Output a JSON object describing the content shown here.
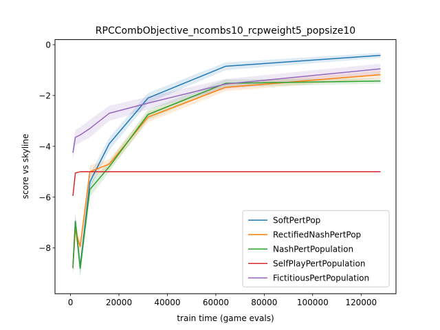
{
  "chart_data": {
    "type": "line",
    "title": "RPCCombObjective_ncombs10_rcpweight5_popsize10",
    "xlabel": "train time (game evals)",
    "ylabel": "score vs skyline",
    "xlim": [
      -6400,
      134400
    ],
    "ylim": [
      -9.8,
      0.2
    ],
    "x_ticks": [
      0,
      20000,
      40000,
      60000,
      80000,
      100000,
      120000
    ],
    "x_tick_labels": [
      "0",
      "20000",
      "40000",
      "60000",
      "80000",
      "100000",
      "120000"
    ],
    "y_ticks": [
      -8,
      -6,
      -4,
      -2,
      0
    ],
    "y_tick_labels": [
      "−8",
      "−6",
      "−4",
      "−2",
      "0"
    ],
    "grid": false,
    "legend_position": "lower-right",
    "x": [
      1000,
      2000,
      4000,
      8000,
      16000,
      32000,
      64000,
      128000
    ],
    "series": [
      {
        "name": "SoftPertPop",
        "color": "#1f77b4",
        "values": [
          -8.7,
          -6.95,
          -8.75,
          -5.4,
          -3.9,
          -2.1,
          -0.85,
          -0.42
        ],
        "band": [
          0.3,
          0.3,
          0.35,
          0.3,
          0.25,
          0.2,
          0.15,
          0.1
        ]
      },
      {
        "name": "RectifiedNashPertPop",
        "color": "#ff7f0e",
        "values": [
          -8.75,
          -7.3,
          -7.95,
          -5.0,
          -4.7,
          -2.85,
          -1.68,
          -1.18
        ],
        "band": [
          0.3,
          0.3,
          0.3,
          0.25,
          0.2,
          0.2,
          0.15,
          0.15
        ]
      },
      {
        "name": "NashPertPopulation",
        "color": "#2ca02c",
        "values": [
          -8.8,
          -6.95,
          -8.8,
          -5.7,
          -4.8,
          -2.75,
          -1.52,
          -1.43
        ],
        "band": [
          0.3,
          0.3,
          0.35,
          0.3,
          0.2,
          0.2,
          0.15,
          0.1
        ]
      },
      {
        "name": "SelfPlayPertPopulation",
        "color": "#d62728",
        "values": [
          -5.95,
          -5.05,
          -5.0,
          -5.0,
          -5.0,
          -5.0,
          -5.0,
          -5.0
        ],
        "band": [
          0.0,
          0.0,
          0.0,
          0.0,
          0.0,
          0.0,
          0.0,
          0.0
        ]
      },
      {
        "name": "FictitiousPertPopulation",
        "color": "#9467bd",
        "values": [
          -4.25,
          -3.65,
          -3.55,
          -3.3,
          -2.7,
          -2.3,
          -1.55,
          -0.95
        ],
        "band": [
          0.3,
          0.3,
          0.3,
          0.35,
          0.3,
          0.25,
          0.2,
          0.2
        ]
      }
    ]
  }
}
